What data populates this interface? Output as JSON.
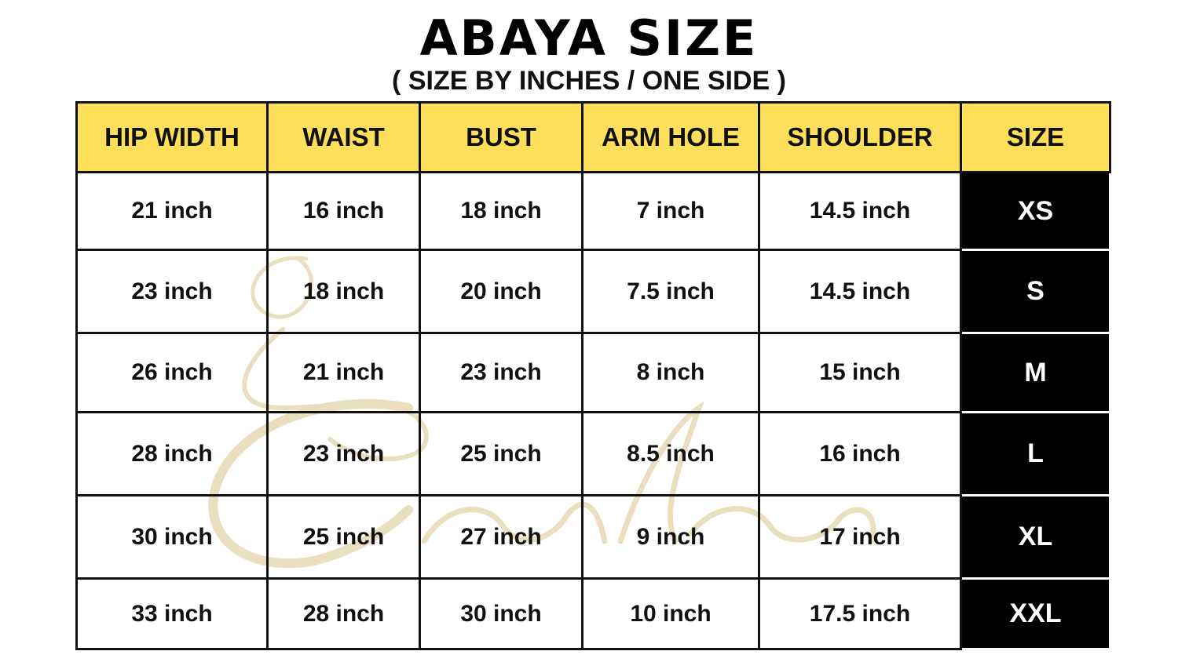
{
  "title": "ABAYA SIZE",
  "subtitle": "( SIZE BY INCHES / ONE SIDE )",
  "watermark": "Contessa",
  "colors": {
    "header_bg": "#fddf5c",
    "size_bg": "#000000",
    "watermark": "#d8c489"
  },
  "table": {
    "headers": [
      "HIP WIDTH",
      "WAIST",
      "BUST",
      "ARM HOLE",
      "SHOULDER",
      "SIZE"
    ],
    "rows": [
      [
        "21 inch",
        "16 inch",
        "18 inch",
        "7 inch",
        "14.5 inch",
        "XS"
      ],
      [
        "23 inch",
        "18 inch",
        "20 inch",
        "7.5 inch",
        "14.5 inch",
        "S"
      ],
      [
        "26 inch",
        "21 inch",
        "23 inch",
        "8 inch",
        "15 inch",
        "M"
      ],
      [
        "28 inch",
        "23 inch",
        "25 inch",
        "8.5 inch",
        "16 inch",
        "L"
      ],
      [
        "30 inch",
        "25 inch",
        "27 inch",
        "9 inch",
        "17 inch",
        "XL"
      ],
      [
        "33 inch",
        "28 inch",
        "30 inch",
        "10 inch",
        "17.5 inch",
        "XXL"
      ]
    ]
  }
}
